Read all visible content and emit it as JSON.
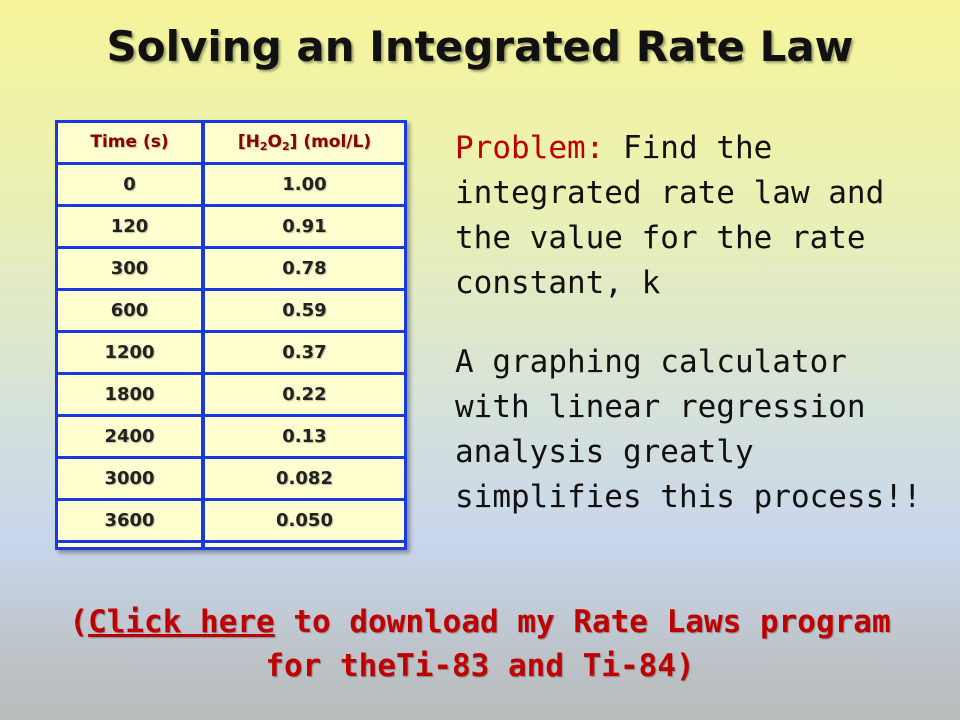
{
  "title": "Solving an Integrated Rate Law",
  "table": {
    "headers": {
      "time": "Time (s)",
      "conc_prefix": "[H",
      "conc_sub1": "2",
      "conc_mid": "O",
      "conc_sub2": "2",
      "conc_suffix": "] (mol/L)"
    },
    "rows": [
      {
        "time": "0",
        "conc": "1.00"
      },
      {
        "time": "120",
        "conc": "0.91"
      },
      {
        "time": "300",
        "conc": "0.78"
      },
      {
        "time": "600",
        "conc": "0.59"
      },
      {
        "time": "1200",
        "conc": "0.37"
      },
      {
        "time": "1800",
        "conc": "0.22"
      },
      {
        "time": "2400",
        "conc": "0.13"
      },
      {
        "time": "3000",
        "conc": "0.082"
      },
      {
        "time": "3600",
        "conc": "0.050"
      }
    ]
  },
  "problem": {
    "label": "Problem:",
    "text": "Find the integrated rate law and the value for the rate constant, k"
  },
  "calculator_note": "A graphing calculator with linear regression analysis greatly simplifies this process!!",
  "download": {
    "open_paren": "(",
    "link_text": "Click here",
    "rest_line1": " to download my Rate Laws program",
    "line2": "for theTi-83 and Ti-84)"
  },
  "colors": {
    "accent_red": "#c00000",
    "header_red": "#8b0000",
    "table_border": "#1a3ae0",
    "table_fill": "#ffffd0"
  }
}
